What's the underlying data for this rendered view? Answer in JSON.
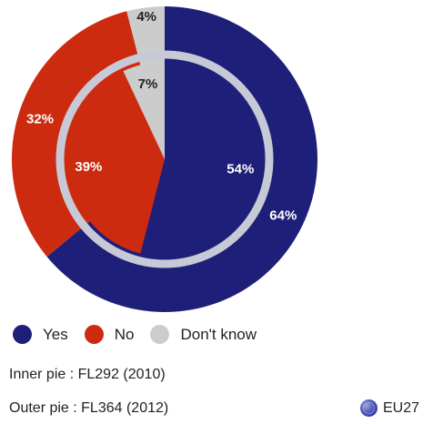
{
  "chart_data": {
    "type": "pie",
    "categories": [
      "Yes",
      "No",
      "Don't know"
    ],
    "series": [
      {
        "values": [
          64,
          32,
          4
        ]
      },
      {
        "values": [
          54,
          39,
          7
        ]
      }
    ],
    "labels": {
      "outer": [
        "64%",
        "32%",
        "4%"
      ],
      "inner": [
        "54%",
        "39%",
        "7%"
      ]
    },
    "colors": [
      "#1e1f78",
      "#cc2b0f",
      "#cccccc"
    ],
    "legend_position": "bottom-left"
  },
  "legend": {
    "items": [
      {
        "label": "Yes",
        "color": "#1e1f78"
      },
      {
        "label": "No",
        "color": "#cc2b0f"
      },
      {
        "label": "Don't know",
        "color": "#cccccc"
      }
    ]
  },
  "notes": {
    "inner": "Inner pie : FL292 (2010)",
    "outer": "Outer pie : FL364 (2012)"
  },
  "badge": {
    "label": "EU27",
    "icon": "globe-icon"
  }
}
